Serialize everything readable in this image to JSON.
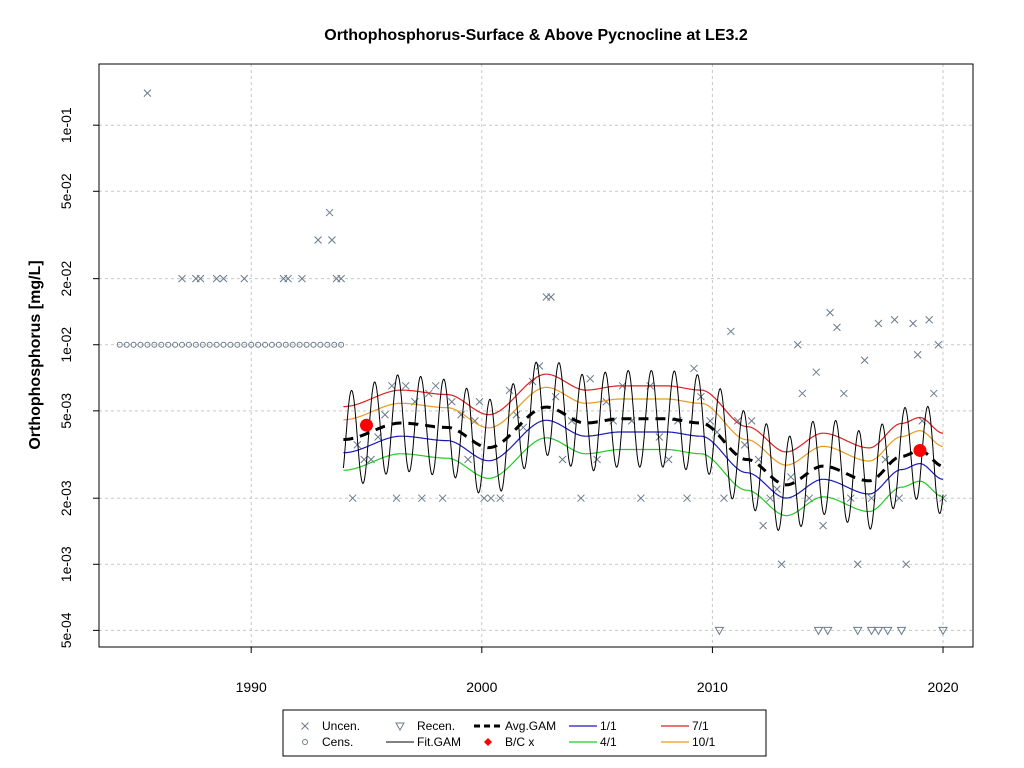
{
  "chart_data": {
    "type": "scatter",
    "title": "Orthophosphorus-Surface & Above Pycnocline at LE3.2",
    "xlabel": "",
    "ylabel": "Orthophosphorus [mg/L]",
    "x_scale": "linear",
    "y_scale": "log",
    "xlim": [
      1983.4,
      2021.3
    ],
    "ylim": [
      0.00042,
      0.19
    ],
    "x_ticks": [
      1990,
      2000,
      2010,
      2020
    ],
    "x_tick_labels": [
      "1990",
      "2000",
      "2010",
      "2020"
    ],
    "y_ticks": [
      0.0005,
      0.001,
      0.002,
      0.005,
      0.01,
      0.02,
      0.05,
      0.1
    ],
    "y_tick_labels": [
      "5e-04",
      "1e-03",
      "2e-03",
      "5e-03",
      "1e-02",
      "2e-02",
      "5e-02",
      "1e-01"
    ],
    "grid": true,
    "legend_position": "bottom",
    "colors": {
      "points": "#6b7b8c",
      "fit_gam": "#000000",
      "avg_gam": "#000000",
      "bc": "#ff0000",
      "s1_1": "#1a1ab8",
      "s4_1": "#22cc22",
      "s7_1": "#dd2020",
      "s10_1": "#e89a20",
      "grid": "#c8c8c8"
    },
    "legend": [
      {
        "label": "Uncen.",
        "symbol": "cross"
      },
      {
        "label": "Cens.",
        "symbol": "circle"
      },
      {
        "label": "Recen.",
        "symbol": "triangle"
      },
      {
        "label": "Fit.GAM",
        "symbol": "line-black"
      },
      {
        "label": "Avg.GAM",
        "symbol": "line-dashed"
      },
      {
        "label": "B/C x",
        "symbol": "red-diamond"
      },
      {
        "label": "1/1",
        "symbol": "line-blue"
      },
      {
        "label": "4/1",
        "symbol": "line-green"
      },
      {
        "label": "7/1",
        "symbol": "line-red"
      },
      {
        "label": "10/1",
        "symbol": "line-orange"
      }
    ],
    "uncensored": [
      [
        1985.5,
        0.14
      ],
      [
        1987.0,
        0.02
      ],
      [
        1987.6,
        0.02
      ],
      [
        1987.8,
        0.02
      ],
      [
        1988.5,
        0.02
      ],
      [
        1988.8,
        0.02
      ],
      [
        1989.7,
        0.02
      ],
      [
        1991.4,
        0.02
      ],
      [
        1991.6,
        0.02
      ],
      [
        1992.2,
        0.02
      ],
      [
        1992.9,
        0.03
      ],
      [
        1993.4,
        0.04
      ],
      [
        1993.5,
        0.03
      ],
      [
        1993.7,
        0.02
      ],
      [
        1993.9,
        0.02
      ],
      [
        1994.4,
        0.002
      ],
      [
        1994.6,
        0.0035
      ],
      [
        1994.9,
        0.003
      ],
      [
        1995.2,
        0.003
      ],
      [
        1995.5,
        0.0038
      ],
      [
        1995.8,
        0.0048
      ],
      [
        1996.1,
        0.0065
      ],
      [
        1996.3,
        0.002
      ],
      [
        1996.7,
        0.0065
      ],
      [
        1997.1,
        0.0055
      ],
      [
        1997.4,
        0.002
      ],
      [
        1997.7,
        0.006
      ],
      [
        1998.0,
        0.0065
      ],
      [
        1998.3,
        0.002
      ],
      [
        1998.7,
        0.0055
      ],
      [
        1999.1,
        0.0048
      ],
      [
        1999.4,
        0.003
      ],
      [
        1999.7,
        0.0045
      ],
      [
        1999.9,
        0.0055
      ],
      [
        2000.1,
        0.002
      ],
      [
        2000.4,
        0.002
      ],
      [
        2000.8,
        0.002
      ],
      [
        2001.2,
        0.0062
      ],
      [
        2001.5,
        0.0048
      ],
      [
        2001.8,
        0.0042
      ],
      [
        2002.2,
        0.0068
      ],
      [
        2002.5,
        0.008
      ],
      [
        2002.8,
        0.0165
      ],
      [
        2003.0,
        0.0165
      ],
      [
        2003.2,
        0.0058
      ],
      [
        2003.5,
        0.003
      ],
      [
        2003.9,
        0.0045
      ],
      [
        2004.3,
        0.002
      ],
      [
        2004.7,
        0.007
      ],
      [
        2005.0,
        0.003
      ],
      [
        2005.4,
        0.0055
      ],
      [
        2005.7,
        0.0045
      ],
      [
        2006.1,
        0.0065
      ],
      [
        2006.5,
        0.0045
      ],
      [
        2006.9,
        0.002
      ],
      [
        2007.3,
        0.0065
      ],
      [
        2007.7,
        0.0038
      ],
      [
        2008.1,
        0.003
      ],
      [
        2008.5,
        0.0045
      ],
      [
        2008.9,
        0.002
      ],
      [
        2009.2,
        0.0078
      ],
      [
        2009.5,
        0.0058
      ],
      [
        2009.9,
        0.0045
      ],
      [
        2010.2,
        0.004
      ],
      [
        2010.5,
        0.002
      ],
      [
        2010.8,
        0.0115
      ],
      [
        2011.1,
        0.0045
      ],
      [
        2011.4,
        0.0035
      ],
      [
        2011.7,
        0.0045
      ],
      [
        2012.0,
        0.003
      ],
      [
        2012.2,
        0.0015
      ],
      [
        2012.5,
        0.002
      ],
      [
        2012.8,
        0.0022
      ],
      [
        2013.0,
        0.001
      ],
      [
        2013.4,
        0.0025
      ],
      [
        2013.7,
        0.01
      ],
      [
        2013.9,
        0.006
      ],
      [
        2014.2,
        0.002
      ],
      [
        2014.5,
        0.0075
      ],
      [
        2014.8,
        0.0015
      ],
      [
        2015.1,
        0.014
      ],
      [
        2015.4,
        0.012
      ],
      [
        2015.7,
        0.006
      ],
      [
        2016.0,
        0.002
      ],
      [
        2016.3,
        0.001
      ],
      [
        2016.6,
        0.0085
      ],
      [
        2016.9,
        0.002
      ],
      [
        2017.2,
        0.0125
      ],
      [
        2017.5,
        0.003
      ],
      [
        2017.9,
        0.013
      ],
      [
        2018.1,
        0.002
      ],
      [
        2018.4,
        0.001
      ],
      [
        2018.7,
        0.0125
      ],
      [
        2018.9,
        0.009
      ],
      [
        2019.1,
        0.0045
      ],
      [
        2019.4,
        0.013
      ],
      [
        2019.6,
        0.006
      ],
      [
        2019.8,
        0.01
      ],
      [
        2020.0,
        0.002
      ]
    ],
    "censored": {
      "value": 0.01,
      "x": [
        1984.3,
        1984.6,
        1984.9,
        1985.2,
        1985.5,
        1985.8,
        1986.1,
        1986.4,
        1986.7,
        1987.0,
        1987.3,
        1987.6,
        1987.9,
        1988.2,
        1988.5,
        1988.8,
        1989.1,
        1989.4,
        1989.7,
        1990.0,
        1990.3,
        1990.6,
        1990.9,
        1991.2,
        1991.5,
        1991.8,
        1992.1,
        1992.4,
        1992.7,
        1993.0,
        1993.3,
        1993.6,
        1993.9
      ]
    },
    "recensored": [
      [
        2010.3,
        0.0005
      ],
      [
        2014.6,
        0.0005
      ],
      [
        2015.0,
        0.0005
      ],
      [
        2016.3,
        0.0005
      ],
      [
        2016.9,
        0.0005
      ],
      [
        2017.2,
        0.0005
      ],
      [
        2017.6,
        0.0005
      ],
      [
        2018.2,
        0.0005
      ],
      [
        2020.0,
        0.0005
      ]
    ],
    "bc_points": [
      [
        1995.0,
        0.0043
      ],
      [
        2019.0,
        0.0033
      ]
    ],
    "curve_range": [
      1994.0,
      2020.0
    ],
    "seasonal_amplitude": 0.22
  }
}
